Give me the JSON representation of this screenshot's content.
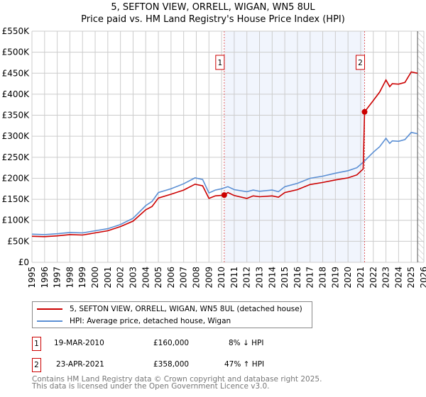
{
  "chart_data": {
    "type": "line",
    "title": "5, SEFTON VIEW, ORRELL, WIGAN, WN5 8UL",
    "subtitle": "Price paid vs. HM Land Registry's House Price Index (HPI)",
    "xlim": [
      1995,
      2026
    ],
    "ylim": [
      0,
      550000
    ],
    "x_ticks": [
      "1995",
      "1996",
      "1997",
      "1998",
      "1999",
      "2000",
      "2001",
      "2002",
      "2003",
      "2004",
      "2005",
      "2006",
      "2007",
      "2008",
      "2009",
      "2010",
      "2011",
      "2012",
      "2013",
      "2014",
      "2015",
      "2016",
      "2017",
      "2018",
      "2019",
      "2020",
      "2021",
      "2022",
      "2023",
      "2024",
      "2025",
      "2026"
    ],
    "y_ticks": [
      {
        "v": 0,
        "label": "£0"
      },
      {
        "v": 50000,
        "label": "£50K"
      },
      {
        "v": 100000,
        "label": "£100K"
      },
      {
        "v": 150000,
        "label": "£150K"
      },
      {
        "v": 200000,
        "label": "£200K"
      },
      {
        "v": 250000,
        "label": "£250K"
      },
      {
        "v": 300000,
        "label": "£300K"
      },
      {
        "v": 350000,
        "label": "£350K"
      },
      {
        "v": 400000,
        "label": "£400K"
      },
      {
        "v": 450000,
        "label": "£450K"
      },
      {
        "v": 500000,
        "label": "£500K"
      },
      {
        "v": 550000,
        "label": "£550K"
      }
    ],
    "grid": true,
    "shaded_range": [
      2010.21,
      2021.31
    ],
    "hatched_after": 2025.5,
    "series": [
      {
        "name": "5, SEFTON VIEW, ORRELL, WIGAN, WN5 8UL (detached house)",
        "color": "#cc0000",
        "x": [
          1995,
          1996,
          1997,
          1998,
          1999,
          2000,
          2001,
          2002,
          2003,
          2004,
          2004.5,
          2005,
          2006,
          2007,
          2007.9,
          2008.5,
          2009,
          2009.5,
          2010.21,
          2010.5,
          2011,
          2012,
          2012.5,
          2013,
          2014,
          2014.5,
          2015,
          2016,
          2017,
          2018,
          2019,
          2020,
          2020.7,
          2021.2,
          2021.31,
          2022,
          2022.5,
          2023,
          2023.3,
          2023.5,
          2024,
          2024.5,
          2025,
          2025.5
        ],
        "y": [
          62000,
          61000,
          63000,
          66000,
          65000,
          70000,
          75000,
          85000,
          98000,
          125000,
          133000,
          153000,
          162000,
          172000,
          186000,
          182000,
          152000,
          158000,
          160000,
          166000,
          159000,
          152000,
          158000,
          156000,
          158000,
          155000,
          166000,
          173000,
          185000,
          190000,
          196000,
          201000,
          208000,
          222000,
          358000,
          385000,
          405000,
          434000,
          418000,
          425000,
          424000,
          428000,
          453000,
          450000
        ]
      },
      {
        "name": "HPI: Average price, detached house, Wigan",
        "color": "#5b8fd4",
        "x": [
          1995,
          1996,
          1997,
          1998,
          1999,
          2000,
          2001,
          2002,
          2003,
          2004,
          2004.5,
          2005,
          2006,
          2007,
          2007.9,
          2008.5,
          2009,
          2009.5,
          2010,
          2010.5,
          2011,
          2012,
          2012.5,
          2013,
          2014,
          2014.5,
          2015,
          2016,
          2017,
          2018,
          2019,
          2020,
          2020.7,
          2021.2,
          2022,
          2022.5,
          2023,
          2023.3,
          2023.5,
          2024,
          2024.5,
          2025,
          2025.5
        ],
        "y": [
          67000,
          66000,
          68000,
          71000,
          70000,
          75000,
          80000,
          90000,
          105000,
          135000,
          145000,
          166000,
          175000,
          187000,
          201000,
          197000,
          165000,
          172000,
          175000,
          180000,
          173000,
          168000,
          172000,
          169000,
          172000,
          168000,
          180000,
          188000,
          200000,
          205000,
          212000,
          218000,
          225000,
          238000,
          262000,
          275000,
          295000,
          283000,
          289000,
          288000,
          292000,
          309000,
          306000
        ]
      }
    ],
    "annotations": [
      {
        "label": "1",
        "x": 2010.21,
        "y": 160000
      },
      {
        "label": "2",
        "x": 2021.31,
        "y": 358000
      }
    ]
  },
  "transactions": [
    {
      "num": "1",
      "date": "19-MAR-2010",
      "price": "£160,000",
      "hpi": "8% ↓ HPI"
    },
    {
      "num": "2",
      "date": "23-APR-2021",
      "price": "£358,000",
      "hpi": "47% ↑ HPI"
    }
  ],
  "footer": {
    "line1": "Contains HM Land Registry data © Crown copyright and database right 2025.",
    "line2": "This data is licensed under the Open Government Licence v3.0."
  }
}
